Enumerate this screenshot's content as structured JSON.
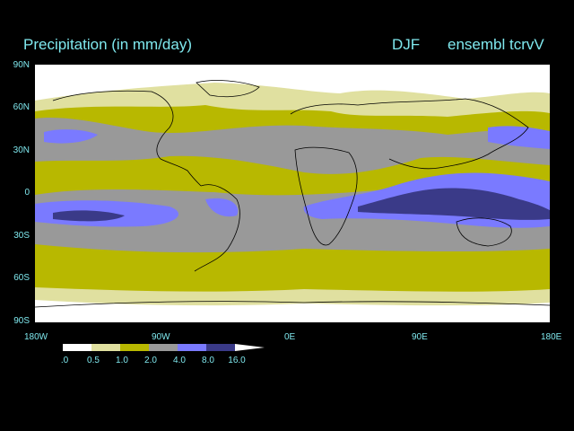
{
  "header": {
    "title": "Precipitation (in mm/day)",
    "season": "DJF",
    "run": "ensembl tcrvV"
  },
  "axes": {
    "lat_labels": [
      "90N",
      "60N",
      "30N",
      "0",
      "30S",
      "60S",
      "90S"
    ],
    "lon_labels": [
      "180W",
      "90W",
      "0E",
      "90E",
      "180E"
    ]
  },
  "colorbar": {
    "labels": [
      ".0",
      "0.5",
      "1.0",
      "2.0",
      "4.0",
      "8.0",
      "16.0"
    ],
    "colors": [
      "#ffffff",
      "#e0e0a0",
      "#b8b800",
      "#999999",
      "#7a7aff",
      "#3a3a88"
    ]
  },
  "map": {
    "background_color": "#ffffff",
    "coast_color": "#000000",
    "lon_range": [
      -180,
      180
    ],
    "lat_range": [
      -90,
      90
    ]
  }
}
